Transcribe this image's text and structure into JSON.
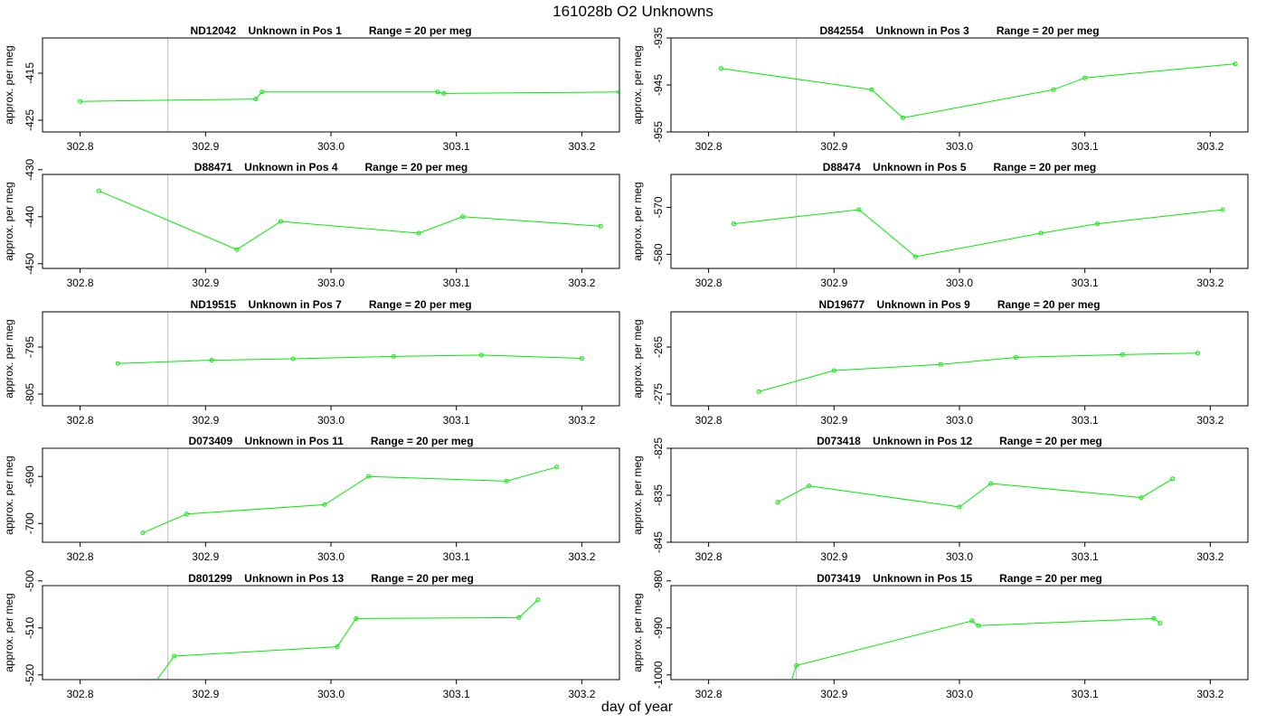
{
  "figure": {
    "title": "161028b  O2 Unknowns",
    "xlabel": "day of year",
    "ylabel": "approx. per meg",
    "line_color": "#00ee00",
    "frame_color": "#000000",
    "vline_color": "#bebebe"
  },
  "chart_data": [
    {
      "type": "line",
      "title": "ND12042    Unknown in Pos 1         Range = 20 per meg",
      "xlim": [
        302.77,
        303.23
      ],
      "ylim": [
        -427.5,
        -407.5
      ],
      "yticks": [
        -415,
        -425
      ],
      "xticks": [
        302.8,
        302.9,
        303.0,
        303.1,
        303.2
      ],
      "vlines": [
        302.87,
        303.23
      ],
      "x": [
        302.8,
        302.94,
        302.945,
        303.085,
        303.09,
        303.23
      ],
      "y": [
        -421.0,
        -420.5,
        -419.0,
        -419.0,
        -419.3,
        -419.0
      ]
    },
    {
      "type": "line",
      "title": "D842554    Unknown in Pos 3         Range = 20 per meg",
      "xlim": [
        302.77,
        303.23
      ],
      "ylim": [
        -955,
        -935
      ],
      "yticks": [
        -935,
        -945,
        -955
      ],
      "xticks": [
        302.8,
        302.9,
        303.0,
        303.1,
        303.2
      ],
      "vlines": [
        302.87,
        303.23
      ],
      "x": [
        302.81,
        302.93,
        302.955,
        303.075,
        303.1,
        303.22
      ],
      "y": [
        -941.5,
        -946.0,
        -952.0,
        -946.0,
        -943.5,
        -940.5
      ]
    },
    {
      "type": "line",
      "title": "D88471    Unknown in Pos 4         Range = 20 per meg",
      "xlim": [
        302.77,
        303.23
      ],
      "ylim": [
        -451,
        -431
      ],
      "yticks": [
        -430,
        -440,
        -450
      ],
      "xticks": [
        302.8,
        302.9,
        303.0,
        303.1,
        303.2
      ],
      "vlines": [
        302.87,
        303.23
      ],
      "x": [
        302.815,
        302.925,
        302.96,
        303.07,
        303.105,
        303.215
      ],
      "y": [
        -434.5,
        -447.0,
        -441.0,
        -443.5,
        -440.0,
        -442.0
      ]
    },
    {
      "type": "line",
      "title": "D88474    Unknown in Pos 5         Range = 20 per meg",
      "xlim": [
        302.77,
        303.23
      ],
      "ylim": [
        -583,
        -563
      ],
      "yticks": [
        -570,
        -580
      ],
      "xticks": [
        302.8,
        302.9,
        303.0,
        303.1,
        303.2
      ],
      "vlines": [
        302.87,
        303.23
      ],
      "x": [
        302.82,
        302.92,
        302.965,
        303.065,
        303.11,
        303.21
      ],
      "y": [
        -573.5,
        -570.5,
        -580.5,
        -575.5,
        -573.5,
        -570.5
      ]
    },
    {
      "type": "line",
      "title": "ND19515    Unknown in Pos 7         Range = 20 per meg",
      "xlim": [
        302.77,
        303.23
      ],
      "ylim": [
        -807.5,
        -787.5
      ],
      "yticks": [
        -795,
        -805
      ],
      "xticks": [
        302.8,
        302.9,
        303.0,
        303.1,
        303.2
      ],
      "vlines": [
        302.87,
        303.23
      ],
      "x": [
        302.83,
        302.905,
        302.97,
        303.05,
        303.12,
        303.2
      ],
      "y": [
        -798.5,
        -797.8,
        -797.5,
        -797.0,
        -796.7,
        -797.4
      ]
    },
    {
      "type": "line",
      "title": "ND19677    Unknown in Pos 9         Range = 20 per meg",
      "xlim": [
        302.77,
        303.23
      ],
      "ylim": [
        -277.5,
        -257.5
      ],
      "yticks": [
        -265,
        -275
      ],
      "xticks": [
        302.8,
        302.9,
        303.0,
        303.1,
        303.2
      ],
      "vlines": [
        302.87,
        303.23
      ],
      "x": [
        302.84,
        302.9,
        302.985,
        303.045,
        303.13,
        303.19
      ],
      "y": [
        -274.5,
        -270.0,
        -268.7,
        -267.2,
        -266.6,
        -266.3
      ]
    },
    {
      "type": "line",
      "title": "D073409    Unknown in Pos 11         Range = 20 per meg",
      "xlim": [
        302.77,
        303.23
      ],
      "ylim": [
        -704,
        -684
      ],
      "yticks": [
        -690,
        -700
      ],
      "xticks": [
        302.8,
        302.9,
        303.0,
        303.1,
        303.2
      ],
      "vlines": [
        302.87,
        303.23
      ],
      "x": [
        302.85,
        302.885,
        302.995,
        303.03,
        303.14,
        303.18
      ],
      "y": [
        -702.0,
        -698.0,
        -696.0,
        -690.0,
        -691.0,
        -688.0
      ]
    },
    {
      "type": "line",
      "title": "D073418    Unknown in Pos 12         Range = 20 per meg",
      "xlim": [
        302.77,
        303.23
      ],
      "ylim": [
        -845,
        -825
      ],
      "yticks": [
        -825,
        -835,
        -845
      ],
      "xticks": [
        302.8,
        302.9,
        303.0,
        303.1,
        303.2
      ],
      "vlines": [
        302.87,
        303.23
      ],
      "x": [
        302.855,
        302.88,
        303.0,
        303.025,
        303.145,
        303.17
      ],
      "y": [
        -836.5,
        -833.0,
        -837.5,
        -832.5,
        -835.5,
        -831.5
      ]
    },
    {
      "type": "line",
      "title": "D801299    Unknown in Pos 13         Range = 20 per meg",
      "xlim": [
        302.77,
        303.23
      ],
      "ylim": [
        -521,
        -501
      ],
      "yticks": [
        -500,
        -510,
        -520
      ],
      "xticks": [
        302.8,
        302.9,
        303.0,
        303.1,
        303.2
      ],
      "vlines": [
        302.87,
        303.23
      ],
      "x": [
        302.86,
        302.875,
        303.005,
        303.02,
        303.15,
        303.165
      ],
      "y": [
        -521.5,
        -516.0,
        -514.0,
        -508.0,
        -507.8,
        -504.0
      ]
    },
    {
      "type": "line",
      "title": "D073419    Unknown in Pos 15         Range = 20 per meg",
      "xlim": [
        302.77,
        303.23
      ],
      "ylim": [
        -1001,
        -981
      ],
      "yticks": [
        -980,
        -990,
        -1000
      ],
      "xticks": [
        302.8,
        302.9,
        303.0,
        303.1,
        303.2
      ],
      "vlines": [
        302.87,
        303.23
      ],
      "x": [
        302.865,
        302.87,
        303.01,
        303.015,
        303.155,
        303.16
      ],
      "y": [
        -1002.0,
        -998.0,
        -988.5,
        -989.5,
        -988.0,
        -989.0
      ]
    }
  ]
}
